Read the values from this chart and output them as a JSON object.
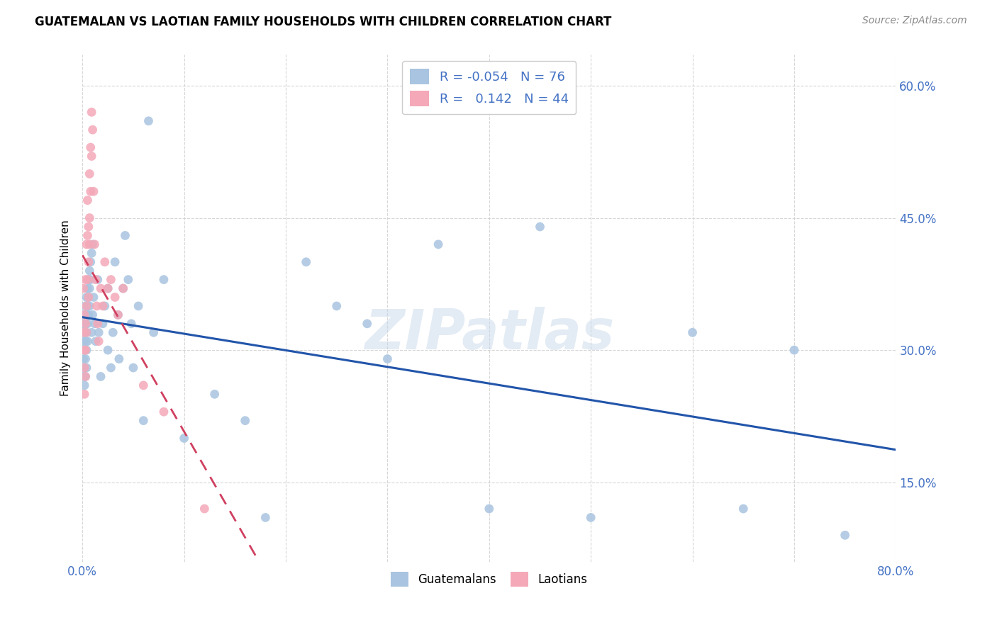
{
  "title": "GUATEMALAN VS LAOTIAN FAMILY HOUSEHOLDS WITH CHILDREN CORRELATION CHART",
  "source": "Source: ZipAtlas.com",
  "ylabel": "Family Households with Children",
  "x_min": 0.0,
  "x_max": 0.8,
  "y_min": 0.06,
  "y_max": 0.635,
  "x_ticks": [
    0.0,
    0.1,
    0.2,
    0.3,
    0.4,
    0.5,
    0.6,
    0.7,
    0.8
  ],
  "y_ticks": [
    0.15,
    0.3,
    0.45,
    0.6
  ],
  "y_tick_labels_right": [
    "15.0%",
    "30.0%",
    "45.0%",
    "60.0%"
  ],
  "guatemalan_color": "#a8c4e0",
  "laotian_color": "#f4a8b8",
  "trend_guatemalan_color": "#2255aa",
  "trend_laotian_color": "#d04060",
  "r_guatemalan": -0.054,
  "n_guatemalan": 76,
  "r_laotian": 0.142,
  "n_laotian": 44,
  "watermark": "ZIPatlas",
  "legend_guatemalan": "Guatemalans",
  "legend_laotian": "Laotians",
  "guatemalan_x": [
    0.001,
    0.001,
    0.001,
    0.001,
    0.002,
    0.002,
    0.002,
    0.002,
    0.002,
    0.003,
    0.003,
    0.003,
    0.003,
    0.003,
    0.004,
    0.004,
    0.004,
    0.004,
    0.004,
    0.005,
    0.005,
    0.005,
    0.005,
    0.006,
    0.006,
    0.006,
    0.007,
    0.007,
    0.007,
    0.008,
    0.008,
    0.009,
    0.009,
    0.01,
    0.01,
    0.011,
    0.012,
    0.013,
    0.015,
    0.016,
    0.018,
    0.02,
    0.022,
    0.025,
    0.025,
    0.028,
    0.03,
    0.032,
    0.035,
    0.036,
    0.04,
    0.042,
    0.045,
    0.048,
    0.05,
    0.055,
    0.06,
    0.065,
    0.07,
    0.08,
    0.1,
    0.13,
    0.16,
    0.18,
    0.22,
    0.25,
    0.28,
    0.3,
    0.35,
    0.4,
    0.45,
    0.5,
    0.6,
    0.65,
    0.7,
    0.75
  ],
  "guatemalan_y": [
    0.33,
    0.31,
    0.29,
    0.27,
    0.34,
    0.32,
    0.3,
    0.28,
    0.26,
    0.35,
    0.33,
    0.31,
    0.29,
    0.27,
    0.36,
    0.34,
    0.32,
    0.3,
    0.28,
    0.37,
    0.35,
    0.33,
    0.31,
    0.38,
    0.36,
    0.34,
    0.39,
    0.37,
    0.35,
    0.4,
    0.38,
    0.41,
    0.32,
    0.42,
    0.34,
    0.36,
    0.33,
    0.31,
    0.38,
    0.32,
    0.27,
    0.33,
    0.35,
    0.3,
    0.37,
    0.28,
    0.32,
    0.4,
    0.34,
    0.29,
    0.37,
    0.43,
    0.38,
    0.33,
    0.28,
    0.35,
    0.22,
    0.56,
    0.32,
    0.38,
    0.2,
    0.25,
    0.22,
    0.11,
    0.4,
    0.35,
    0.33,
    0.29,
    0.42,
    0.12,
    0.44,
    0.11,
    0.32,
    0.12,
    0.3,
    0.09
  ],
  "laotian_x": [
    0.001,
    0.001,
    0.002,
    0.002,
    0.002,
    0.002,
    0.003,
    0.003,
    0.003,
    0.003,
    0.004,
    0.004,
    0.004,
    0.005,
    0.005,
    0.005,
    0.006,
    0.006,
    0.006,
    0.007,
    0.007,
    0.007,
    0.008,
    0.008,
    0.009,
    0.009,
    0.01,
    0.011,
    0.012,
    0.013,
    0.014,
    0.015,
    0.016,
    0.018,
    0.02,
    0.022,
    0.025,
    0.028,
    0.032,
    0.035,
    0.04,
    0.06,
    0.08,
    0.12
  ],
  "laotian_y": [
    0.32,
    0.37,
    0.34,
    0.3,
    0.28,
    0.25,
    0.38,
    0.33,
    0.3,
    0.27,
    0.42,
    0.35,
    0.32,
    0.47,
    0.43,
    0.38,
    0.44,
    0.4,
    0.36,
    0.5,
    0.45,
    0.42,
    0.53,
    0.48,
    0.57,
    0.52,
    0.55,
    0.48,
    0.42,
    0.38,
    0.35,
    0.33,
    0.31,
    0.37,
    0.35,
    0.4,
    0.37,
    0.38,
    0.36,
    0.34,
    0.37,
    0.26,
    0.23,
    0.12
  ]
}
